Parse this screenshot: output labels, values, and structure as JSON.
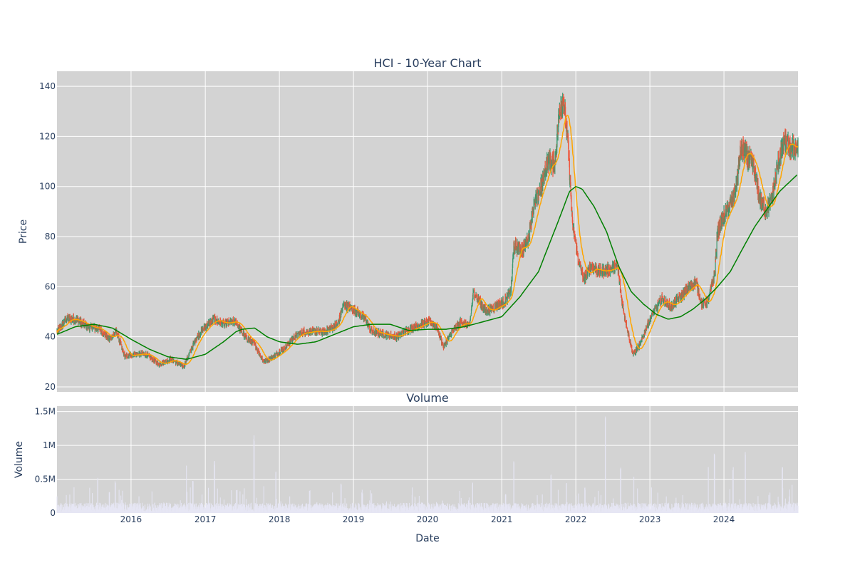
{
  "colors": {
    "plot_bg": "#d3d3d3",
    "grid": "#ffffff",
    "text": "#2a3f5f",
    "up": "#3d9970",
    "down": "#ef553b",
    "ma_short": "#ffa500",
    "ma_long": "#008000",
    "volume": "#e6e6f4"
  },
  "chart_data": [
    {
      "type": "candlestick",
      "title": "HCI - 10-Year Chart",
      "xlabel": "",
      "ylabel": "Price",
      "x_range": [
        "2015-01-01",
        "2024-12-31"
      ],
      "ylim": [
        18,
        146
      ],
      "y_ticks": [
        20,
        40,
        60,
        80,
        100,
        120,
        140
      ],
      "grid": true,
      "series": [
        {
          "style": "candlestick",
          "close_anchors": [
            [
              "2015-01-02",
              42
            ],
            [
              "2015-02-15",
              47
            ],
            [
              "2015-04-01",
              47
            ],
            [
              "2015-06-01",
              44
            ],
            [
              "2015-08-01",
              43
            ],
            [
              "2015-09-15",
              39
            ],
            [
              "2015-10-20",
              42
            ],
            [
              "2015-12-01",
              32
            ],
            [
              "2016-01-15",
              33
            ],
            [
              "2016-03-15",
              33
            ],
            [
              "2016-05-15",
              29
            ],
            [
              "2016-07-15",
              31
            ],
            [
              "2016-09-15",
              28
            ],
            [
              "2016-11-20",
              40
            ],
            [
              "2017-01-01",
              44
            ],
            [
              "2017-02-15",
              47
            ],
            [
              "2017-04-01",
              45
            ],
            [
              "2017-06-01",
              46
            ],
            [
              "2017-07-15",
              40
            ],
            [
              "2017-09-01",
              37
            ],
            [
              "2017-10-15",
              30
            ],
            [
              "2017-12-01",
              32
            ],
            [
              "2018-02-01",
              36
            ],
            [
              "2018-03-15",
              40
            ],
            [
              "2018-05-01",
              42
            ],
            [
              "2018-07-01",
              42
            ],
            [
              "2018-08-15",
              42
            ],
            [
              "2018-10-15",
              45
            ],
            [
              "2018-11-15",
              53
            ],
            [
              "2019-01-15",
              50
            ],
            [
              "2019-03-01",
              47
            ],
            [
              "2019-04-01",
              42
            ],
            [
              "2019-06-01",
              41
            ],
            [
              "2019-08-01",
              40
            ],
            [
              "2019-10-01",
              43
            ],
            [
              "2019-12-01",
              45
            ],
            [
              "2020-01-15",
              46
            ],
            [
              "2020-02-15",
              44
            ],
            [
              "2020-03-20",
              36
            ],
            [
              "2020-05-01",
              42
            ],
            [
              "2020-06-15",
              46
            ],
            [
              "2020-07-25",
              44
            ],
            [
              "2020-08-15",
              58
            ],
            [
              "2020-10-15",
              50
            ],
            [
              "2020-12-01",
              52
            ],
            [
              "2021-01-15",
              54
            ],
            [
              "2021-02-15",
              58
            ],
            [
              "2021-03-01",
              76
            ],
            [
              "2021-04-15",
              75
            ],
            [
              "2021-05-15",
              80
            ],
            [
              "2021-06-01",
              90
            ],
            [
              "2021-07-15",
              100
            ],
            [
              "2021-08-15",
              110
            ],
            [
              "2021-09-20",
              109
            ],
            [
              "2021-10-15",
              132
            ],
            [
              "2021-11-01",
              135
            ],
            [
              "2021-11-25",
              115
            ],
            [
              "2021-12-15",
              85
            ],
            [
              "2022-01-15",
              70
            ],
            [
              "2022-02-10",
              63
            ],
            [
              "2022-03-15",
              68
            ],
            [
              "2022-05-01",
              66
            ],
            [
              "2022-06-15",
              67
            ],
            [
              "2022-07-25",
              68
            ],
            [
              "2022-08-20",
              52
            ],
            [
              "2022-09-20",
              40
            ],
            [
              "2022-10-10",
              33
            ],
            [
              "2022-11-15",
              37
            ],
            [
              "2022-12-20",
              45
            ],
            [
              "2023-01-20",
              50
            ],
            [
              "2023-03-01",
              55
            ],
            [
              "2023-04-15",
              52
            ],
            [
              "2023-06-01",
              56
            ],
            [
              "2023-07-15",
              60
            ],
            [
              "2023-08-15",
              62
            ],
            [
              "2023-09-15",
              53
            ],
            [
              "2023-10-15",
              54
            ],
            [
              "2023-11-15",
              65
            ],
            [
              "2023-12-01",
              82
            ],
            [
              "2024-01-01",
              88
            ],
            [
              "2024-02-15",
              95
            ],
            [
              "2024-03-01",
              100
            ],
            [
              "2024-03-25",
              115
            ],
            [
              "2024-04-25",
              112
            ],
            [
              "2024-05-25",
              108
            ],
            [
              "2024-06-25",
              95
            ],
            [
              "2024-07-25",
              90
            ],
            [
              "2024-08-25",
              95
            ],
            [
              "2024-09-25",
              110
            ],
            [
              "2024-10-25",
              118
            ],
            [
              "2024-11-25",
              115
            ],
            [
              "2024-12-31",
              116
            ]
          ]
        },
        {
          "style": "line",
          "color_key": "ma_short",
          "window_days": 50
        },
        {
          "style": "line",
          "color_key": "ma_long",
          "window_days": 200,
          "values": [
            [
              "2015-01-02",
              41
            ],
            [
              "2015-04-01",
              44
            ],
            [
              "2015-07-01",
              45
            ],
            [
              "2015-10-01",
              43.5
            ],
            [
              "2016-01-01",
              39
            ],
            [
              "2016-04-01",
              35
            ],
            [
              "2016-07-01",
              32
            ],
            [
              "2016-10-01",
              31
            ],
            [
              "2017-01-01",
              33
            ],
            [
              "2017-04-01",
              38
            ],
            [
              "2017-06-01",
              42
            ],
            [
              "2017-07-01",
              43
            ],
            [
              "2017-09-01",
              43.5
            ],
            [
              "2017-11-01",
              40
            ],
            [
              "2018-01-01",
              38
            ],
            [
              "2018-04-01",
              37
            ],
            [
              "2018-07-01",
              38
            ],
            [
              "2018-10-01",
              41
            ],
            [
              "2019-01-01",
              44
            ],
            [
              "2019-04-01",
              45
            ],
            [
              "2019-07-01",
              45
            ],
            [
              "2019-10-01",
              42.5
            ],
            [
              "2020-01-01",
              43
            ],
            [
              "2020-04-01",
              43
            ],
            [
              "2020-07-01",
              44
            ],
            [
              "2020-10-01",
              46
            ],
            [
              "2021-01-01",
              48
            ],
            [
              "2021-04-01",
              56
            ],
            [
              "2021-07-01",
              66
            ],
            [
              "2021-10-01",
              85
            ],
            [
              "2021-12-01",
              98
            ],
            [
              "2022-01-01",
              100
            ],
            [
              "2022-02-01",
              99
            ],
            [
              "2022-04-01",
              92
            ],
            [
              "2022-06-01",
              82
            ],
            [
              "2022-08-01",
              68
            ],
            [
              "2022-10-01",
              58
            ],
            [
              "2022-12-01",
              53
            ],
            [
              "2023-02-01",
              49
            ],
            [
              "2023-04-01",
              47
            ],
            [
              "2023-06-01",
              48
            ],
            [
              "2023-08-01",
              51
            ],
            [
              "2023-10-01",
              55
            ],
            [
              "2023-12-01",
              60
            ],
            [
              "2024-02-01",
              66
            ],
            [
              "2024-04-01",
              75
            ],
            [
              "2024-06-01",
              84
            ],
            [
              "2024-08-01",
              91
            ],
            [
              "2024-10-01",
              98
            ],
            [
              "2024-12-31",
              105
            ]
          ]
        }
      ]
    },
    {
      "type": "bar",
      "title": "Volume",
      "xlabel": "Date",
      "ylabel": "Volume",
      "ylim": [
        0,
        1580000
      ],
      "y_ticks": [
        {
          "value": 0,
          "label": "0"
        },
        {
          "value": 500000,
          "label": "0.5M"
        },
        {
          "value": 1000000,
          "label": "1M"
        },
        {
          "value": 1500000,
          "label": "1.5M"
        }
      ],
      "x_ticks": [
        "2016",
        "2017",
        "2018",
        "2019",
        "2020",
        "2021",
        "2022",
        "2023",
        "2024"
      ],
      "baseline_volume": 80000,
      "spikes": [
        [
          "2015-07-20",
          520000
        ],
        [
          "2015-10-15",
          470000
        ],
        [
          "2016-10-01",
          740000
        ],
        [
          "2016-11-01",
          500000
        ],
        [
          "2017-02-15",
          790000
        ],
        [
          "2017-08-29",
          1150000
        ],
        [
          "2017-10-15",
          400000
        ],
        [
          "2017-12-15",
          620000
        ],
        [
          "2018-11-01",
          440000
        ],
        [
          "2019-02-15",
          300000
        ],
        [
          "2019-11-01",
          250000
        ],
        [
          "2020-03-15",
          200000
        ],
        [
          "2020-08-10",
          470000
        ],
        [
          "2021-01-20",
          280000
        ],
        [
          "2021-03-01",
          790000
        ],
        [
          "2021-09-01",
          570000
        ],
        [
          "2021-11-15",
          450000
        ],
        [
          "2022-02-15",
          380000
        ],
        [
          "2022-05-27",
          1510000
        ],
        [
          "2022-08-10",
          680000
        ],
        [
          "2022-10-15",
          590000
        ],
        [
          "2023-10-15",
          730000
        ],
        [
          "2023-11-15",
          880000
        ],
        [
          "2024-02-15",
          700000
        ],
        [
          "2024-04-15",
          910000
        ],
        [
          "2024-10-15",
          680000
        ],
        [
          "2024-12-01",
          430000
        ]
      ]
    }
  ]
}
